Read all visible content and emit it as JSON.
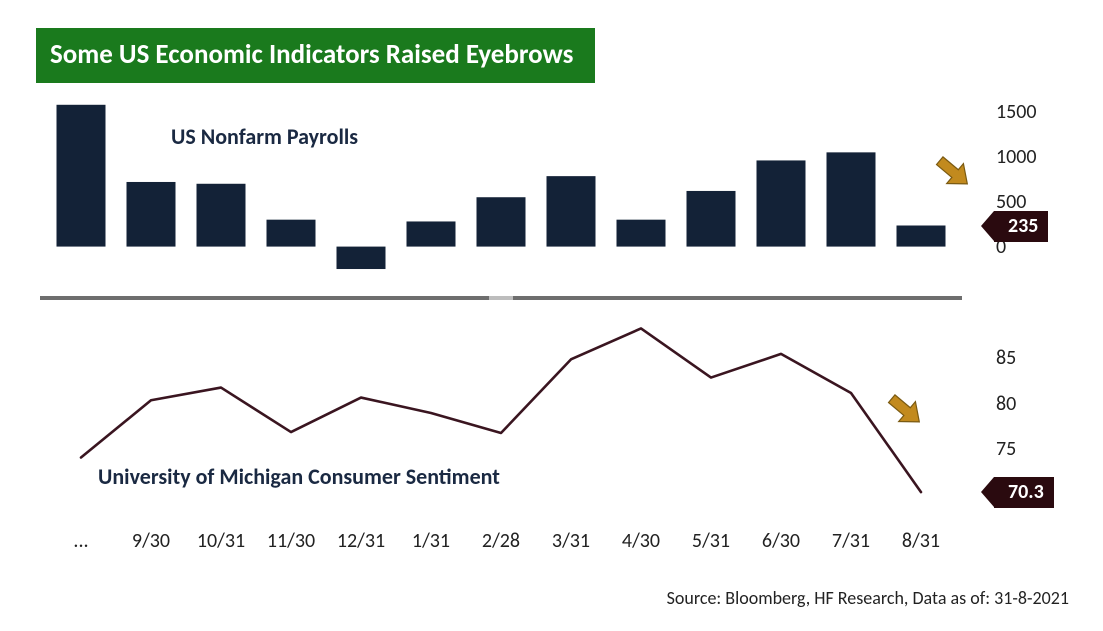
{
  "title": "Some US Economic Indicators Raised Eyebrows",
  "title_bg": "#1a7a1d",
  "title_color": "#ffffff",
  "source": "Source: Bloomberg, HF Research, Data as of: 31-8-2021",
  "x_categories_full": [
    "8/31",
    "9/30",
    "10/31",
    "11/30",
    "12/31",
    "1/31",
    "2/28",
    "3/31",
    "4/30",
    "5/31",
    "6/30",
    "7/31",
    "8/31"
  ],
  "x_labels_shown": [
    "...",
    "9/30",
    "10/31",
    "11/30",
    "12/31",
    "1/31",
    "2/28",
    "3/31",
    "4/30",
    "5/31",
    "6/30",
    "7/31",
    "8/31"
  ],
  "payrolls": {
    "type": "bar",
    "title": "US Nonfarm Payrolls",
    "title_fontsize": 22,
    "values": [
      1580,
      720,
      700,
      300,
      -250,
      280,
      550,
      785,
      300,
      620,
      960,
      1050,
      235
    ],
    "bar_color": "#132237",
    "ylim": [
      -350,
      1600
    ],
    "yticks": [
      0,
      500,
      1000,
      1500
    ],
    "ytick_labels": [
      "0",
      "500",
      "1000",
      "1500"
    ],
    "callout_value": "235",
    "callout_bg": "#2a0a0f",
    "callout_color": "#ffffff",
    "bar_width_ratio": 0.7,
    "arrow_color": "#c28a1e"
  },
  "sentiment": {
    "type": "line",
    "title": "University of Michigan Consumer Sentiment",
    "title_fontsize": 22,
    "values": [
      74.1,
      80.4,
      81.8,
      76.9,
      80.7,
      79.0,
      76.8,
      84.9,
      88.3,
      82.9,
      85.5,
      81.2,
      70.3
    ],
    "line_color": "#3a1520",
    "line_width": 2.6,
    "ylim": [
      68,
      90
    ],
    "yticks": [
      75,
      80,
      85
    ],
    "ytick_labels": [
      "75",
      "80",
      "85"
    ],
    "callout_value": "70.3",
    "callout_bg": "#2a0a0f",
    "callout_color": "#ffffff",
    "arrow_color": "#c28a1e"
  },
  "divider_color": "#6e6e6e",
  "background_color": "#ffffff"
}
